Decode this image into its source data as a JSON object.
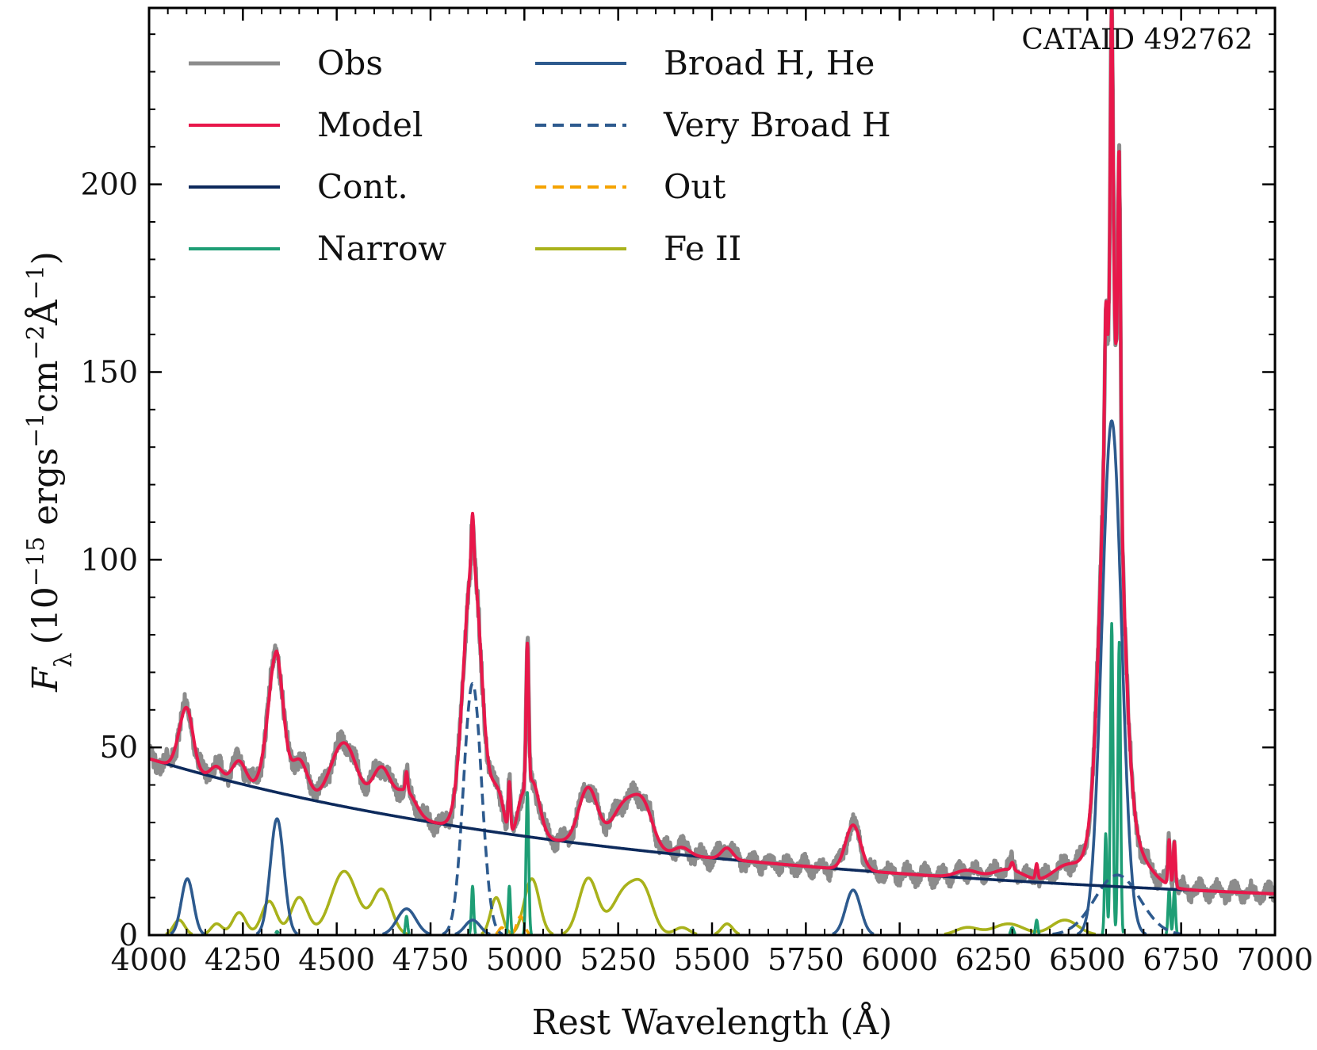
{
  "chart_data": {
    "type": "line",
    "xlabel": "Rest Wavelength (Å)",
    "ylabel": "F",
    "ylabel_sub": "λ",
    "ylabel_units": "(10",
    "ylabel_exp1": "−15",
    "ylabel_mid1": " ergs",
    "ylabel_exp2": "−1",
    "ylabel_mid2": "cm",
    "ylabel_exp3": "−2",
    "ylabel_mid3": "Å",
    "ylabel_exp4": "−1",
    "ylabel_end": ")",
    "xlim": [
      4000,
      7000
    ],
    "ylim": [
      0,
      247
    ],
    "x_ticks": [
      4000,
      4250,
      4500,
      4750,
      5000,
      5250,
      5500,
      5750,
      6000,
      6250,
      6500,
      6750,
      7000
    ],
    "y_ticks": [
      0,
      50,
      100,
      150,
      200
    ],
    "annotation": "CATAID 492762",
    "legend_position": "upper-left",
    "colors": {
      "obs": "#8c8c8c",
      "model": "#e8174a",
      "cont": "#0d2a5c",
      "narrow": "#1e9e75",
      "broad": "#2d5a8e",
      "very_broad": "#2d5a8e",
      "out": "#f5a300",
      "feii": "#a9b21b"
    },
    "series": [
      {
        "name": "Obs",
        "key": "obs"
      },
      {
        "name": "Model",
        "key": "model"
      },
      {
        "name": "Cont.",
        "key": "cont"
      },
      {
        "name": "Narrow",
        "key": "narrow"
      },
      {
        "name": "Broad H, He",
        "key": "broad"
      },
      {
        "name": "Very Broad H",
        "key": "very_broad"
      },
      {
        "name": "Out",
        "key": "out"
      },
      {
        "name": "Fe II",
        "key": "feii"
      }
    ],
    "continuum": {
      "amplitude_at_4000": 47,
      "amplitude_at_7000": 11,
      "shape": "power-law"
    },
    "broad_lines": [
      {
        "center": 4102,
        "amp": 15,
        "sigma": 16
      },
      {
        "center": 4341,
        "amp": 31,
        "sigma": 18
      },
      {
        "center": 4686,
        "amp": 7,
        "sigma": 25
      },
      {
        "center": 4862,
        "amp": 4,
        "sigma": 20
      },
      {
        "center": 5876,
        "amp": 12,
        "sigma": 20
      },
      {
        "center": 6565,
        "amp": 137,
        "sigma": 26
      }
    ],
    "very_broad_lines": [
      {
        "center": 4862,
        "amp": 67,
        "sigma": 24
      },
      {
        "center": 6580,
        "amp": 16,
        "sigma": 60
      }
    ],
    "narrow_lines": [
      {
        "center": 4341,
        "amp": 1,
        "sigma": 3
      },
      {
        "center": 4686,
        "amp": 5,
        "sigma": 3
      },
      {
        "center": 4862,
        "amp": 13,
        "sigma": 3
      },
      {
        "center": 4960,
        "amp": 13,
        "sigma": 3
      },
      {
        "center": 5008,
        "amp": 38,
        "sigma": 3.5
      },
      {
        "center": 6300,
        "amp": 2,
        "sigma": 4
      },
      {
        "center": 6365,
        "amp": 4,
        "sigma": 3
      },
      {
        "center": 6549,
        "amp": 27,
        "sigma": 3
      },
      {
        "center": 6565,
        "amp": 83,
        "sigma": 3.5
      },
      {
        "center": 6585,
        "amp": 78,
        "sigma": 3.5
      },
      {
        "center": 6718,
        "amp": 12,
        "sigma": 3
      },
      {
        "center": 6732,
        "amp": 12,
        "sigma": 3
      }
    ],
    "out_lines": [
      {
        "center": 4940,
        "amp": 2,
        "sigma": 8
      },
      {
        "center": 4990,
        "amp": 5,
        "sigma": 10
      }
    ],
    "feii_components": [
      {
        "center": 4080,
        "amp": 4,
        "sigma": 15
      },
      {
        "center": 4180,
        "amp": 3,
        "sigma": 15
      },
      {
        "center": 4240,
        "amp": 6,
        "sigma": 18
      },
      {
        "center": 4320,
        "amp": 9,
        "sigma": 20
      },
      {
        "center": 4400,
        "amp": 10,
        "sigma": 22
      },
      {
        "center": 4520,
        "amp": 17,
        "sigma": 35
      },
      {
        "center": 4620,
        "amp": 12,
        "sigma": 25
      },
      {
        "center": 4925,
        "amp": 10,
        "sigma": 15
      },
      {
        "center": 5020,
        "amp": 15,
        "sigma": 20
      },
      {
        "center": 5170,
        "amp": 15,
        "sigma": 25
      },
      {
        "center": 5270,
        "amp": 12,
        "sigma": 35
      },
      {
        "center": 5320,
        "amp": 9,
        "sigma": 25
      },
      {
        "center": 5420,
        "amp": 2,
        "sigma": 20
      },
      {
        "center": 5540,
        "amp": 3,
        "sigma": 15
      },
      {
        "center": 6180,
        "amp": 2,
        "sigma": 30
      },
      {
        "center": 6290,
        "amp": 3,
        "sigma": 40
      },
      {
        "center": 6440,
        "amp": 4,
        "sigma": 35
      }
    ]
  }
}
